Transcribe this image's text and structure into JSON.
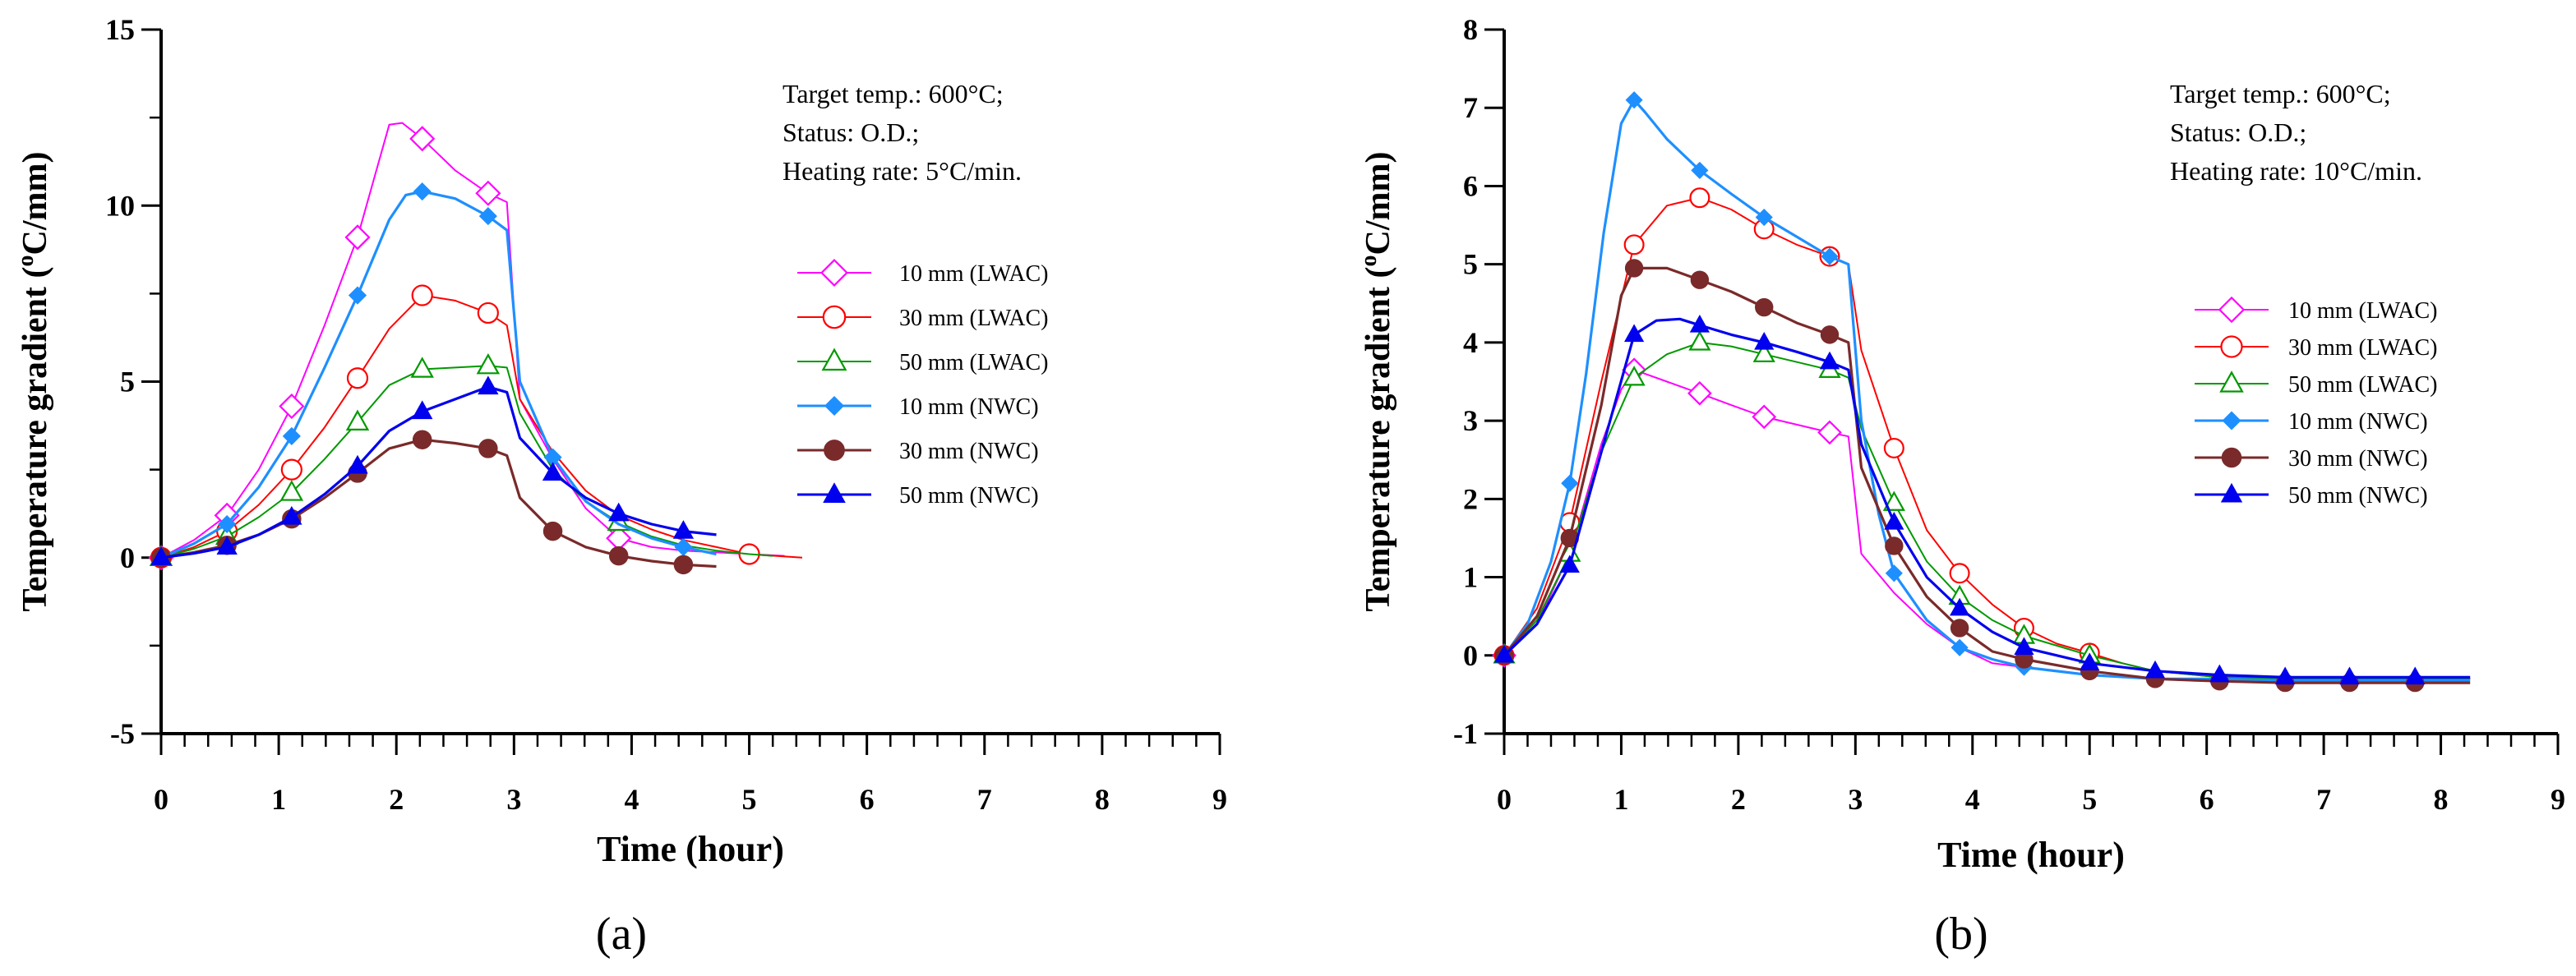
{
  "chart_data": [
    {
      "type": "line",
      "panel_label": "(a)",
      "xlabel": "Time (hour)",
      "ylabel": "Temperature gradient (°C/mm)",
      "ylabel_parts": {
        "pre": "Temperature gradient (",
        "sup": "o",
        "post": "C/mm)"
      },
      "xlim": [
        0,
        9
      ],
      "ylim": [
        -5,
        15
      ],
      "xticks": [
        0,
        1,
        2,
        3,
        4,
        5,
        6,
        7,
        8,
        9
      ],
      "xtick_labels": [
        "0",
        "1",
        "2",
        "3",
        "4",
        "5",
        "6",
        "7",
        "8",
        "9"
      ],
      "yticks": [
        -5,
        0,
        5,
        10,
        15
      ],
      "ytick_labels": [
        "-5",
        "0",
        "5",
        "10",
        "15"
      ],
      "annotation": [
        "Target temp.: 600°C;",
        "Status: O.D.;",
        "Heating rate: 5°C/min."
      ],
      "legend": "right",
      "series": [
        {
          "name": "10 mm (LWAC)",
          "color": "#ff00ff",
          "marker": "diamond-open",
          "x": [
            0,
            0.28,
            0.56,
            0.83,
            1.11,
            1.39,
            1.67,
            1.83,
            1.94,
            2.05,
            2.22,
            2.5,
            2.78,
            2.94,
            3.05,
            3.33,
            3.61,
            3.89,
            4.17,
            4.44,
            4.72,
            5.0,
            5.3
          ],
          "y": [
            0,
            0.5,
            1.2,
            2.5,
            4.3,
            6.6,
            9.1,
            11.0,
            12.3,
            12.35,
            11.9,
            11.0,
            10.35,
            10.1,
            4.5,
            2.8,
            1.4,
            0.55,
            0.3,
            0.2,
            0.15,
            0.1,
            0.05
          ],
          "markers_x": [
            0,
            0.56,
            1.11,
            1.67,
            2.22,
            2.78,
            3.89
          ]
        },
        {
          "name": "30 mm (LWAC)",
          "color": "#ff0000",
          "marker": "circle-open",
          "x": [
            0,
            0.28,
            0.56,
            0.83,
            1.11,
            1.39,
            1.67,
            1.94,
            2.22,
            2.5,
            2.78,
            2.94,
            3.05,
            3.33,
            3.61,
            3.89,
            4.17,
            4.44,
            4.72,
            5.0,
            5.45
          ],
          "y": [
            0,
            0.3,
            0.75,
            1.5,
            2.5,
            3.7,
            5.1,
            6.5,
            7.45,
            7.3,
            6.95,
            6.6,
            4.5,
            3.0,
            1.9,
            1.2,
            0.8,
            0.5,
            0.3,
            0.1,
            0.0
          ],
          "markers_x": [
            0,
            0.56,
            1.11,
            1.67,
            2.22,
            2.78,
            5.0
          ]
        },
        {
          "name": "50 mm (LWAC)",
          "color": "#009900",
          "marker": "triangle-open",
          "x": [
            0,
            0.28,
            0.56,
            0.83,
            1.11,
            1.39,
            1.67,
            1.94,
            2.22,
            2.5,
            2.78,
            2.94,
            3.05,
            3.33,
            3.61,
            3.89,
            4.17,
            4.44,
            4.72,
            5.0,
            5.2
          ],
          "y": [
            0,
            0.25,
            0.6,
            1.15,
            1.85,
            2.8,
            3.85,
            4.9,
            5.35,
            5.4,
            5.45,
            5.4,
            4.1,
            2.5,
            1.6,
            1.0,
            0.6,
            0.35,
            0.2,
            0.1,
            0.05
          ],
          "markers_x": [
            0,
            0.56,
            1.11,
            1.67,
            2.22,
            2.78,
            3.89
          ]
        },
        {
          "name": "10 mm (NWC)",
          "color": "#1e8fff",
          "marker": "diamond-filled",
          "x": [
            0,
            0.28,
            0.56,
            0.83,
            1.11,
            1.39,
            1.67,
            1.94,
            2.08,
            2.22,
            2.5,
            2.78,
            2.94,
            3.05,
            3.33,
            3.61,
            3.89,
            4.17,
            4.44,
            4.72
          ],
          "y": [
            0,
            0.4,
            0.95,
            2.0,
            3.45,
            5.4,
            7.45,
            9.6,
            10.3,
            10.4,
            10.2,
            9.7,
            9.3,
            5.0,
            2.85,
            1.6,
            0.95,
            0.55,
            0.3,
            0.1
          ],
          "markers_x": [
            0,
            0.56,
            1.11,
            1.67,
            2.22,
            2.78,
            3.33,
            4.44
          ]
        },
        {
          "name": "30 mm (NWC)",
          "color": "#7a2a2a",
          "marker": "circle-filled",
          "x": [
            0,
            0.28,
            0.56,
            0.83,
            1.11,
            1.39,
            1.67,
            1.94,
            2.22,
            2.5,
            2.78,
            2.94,
            3.05,
            3.33,
            3.61,
            3.89,
            4.17,
            4.44,
            4.72
          ],
          "y": [
            0,
            0.15,
            0.35,
            0.65,
            1.1,
            1.7,
            2.4,
            3.1,
            3.35,
            3.25,
            3.1,
            2.9,
            1.7,
            0.75,
            0.3,
            0.05,
            -0.1,
            -0.2,
            -0.25
          ],
          "markers_x": [
            0,
            0.56,
            1.11,
            1.67,
            2.22,
            2.78,
            3.33,
            3.89,
            4.44
          ]
        },
        {
          "name": "50 mm (NWC)",
          "color": "#0000ee",
          "marker": "triangle-filled",
          "x": [
            0,
            0.28,
            0.56,
            0.83,
            1.11,
            1.39,
            1.67,
            1.94,
            2.22,
            2.5,
            2.78,
            2.94,
            3.05,
            3.33,
            3.61,
            3.89,
            4.17,
            4.44,
            4.72
          ],
          "y": [
            0,
            0.12,
            0.3,
            0.65,
            1.15,
            1.8,
            2.6,
            3.6,
            4.15,
            4.5,
            4.85,
            4.7,
            3.4,
            2.4,
            1.7,
            1.25,
            0.95,
            0.75,
            0.65
          ],
          "markers_x": [
            0,
            0.56,
            1.11,
            1.67,
            2.22,
            2.78,
            3.33,
            3.89,
            4.44
          ]
        }
      ]
    },
    {
      "type": "line",
      "panel_label": "(b)",
      "xlabel": "Time (hour)",
      "ylabel": "Temperature gradient (°C/mm)",
      "ylabel_parts": {
        "pre": "Temperature gradient (",
        "sup": "o",
        "post": "C/mm)"
      },
      "xlim": [
        0,
        9
      ],
      "ylim": [
        -1,
        8
      ],
      "xticks": [
        0,
        1,
        2,
        3,
        4,
        5,
        6,
        7,
        8,
        9
      ],
      "xtick_labels": [
        "0",
        "1",
        "2",
        "3",
        "4",
        "5",
        "6",
        "7",
        "8",
        "9"
      ],
      "yticks": [
        -1,
        0,
        1,
        2,
        3,
        4,
        5,
        6,
        7,
        8
      ],
      "ytick_labels": [
        "-1",
        "0",
        "1",
        "2",
        "3",
        "4",
        "5",
        "6",
        "7",
        "8"
      ],
      "annotation": [
        "Target temp.: 600°C;",
        "Status: O.D.;",
        "Heating rate: 10°C/min."
      ],
      "legend": "right",
      "series": [
        {
          "name": "10 mm (LWAC)",
          "color": "#ff00ff",
          "marker": "diamond-open",
          "x": [
            0,
            0.28,
            0.56,
            0.83,
            1.0,
            1.11,
            1.39,
            1.67,
            1.94,
            2.22,
            2.5,
            2.78,
            2.94,
            3.05,
            3.33,
            3.61,
            3.89,
            4.17,
            4.44,
            5.0,
            5.56,
            6.11,
            6.67,
            7.22,
            7.78,
            8.25
          ],
          "y": [
            0,
            0.4,
            1.3,
            2.7,
            3.4,
            3.65,
            3.5,
            3.35,
            3.2,
            3.05,
            2.95,
            2.85,
            2.8,
            1.3,
            0.8,
            0.4,
            0.1,
            -0.1,
            -0.15,
            -0.25,
            -0.3,
            -0.3,
            -0.3,
            -0.3,
            -0.3,
            -0.3
          ],
          "markers_x": [
            0,
            1.11,
            1.67,
            2.22,
            2.78
          ]
        },
        {
          "name": "30 mm (LWAC)",
          "color": "#ff0000",
          "marker": "circle-open",
          "x": [
            0,
            0.28,
            0.56,
            0.83,
            1.11,
            1.39,
            1.67,
            1.94,
            2.22,
            2.5,
            2.78,
            2.94,
            3.05,
            3.33,
            3.61,
            3.89,
            4.17,
            4.44,
            4.72,
            5.0,
            5.28,
            5.56,
            6.11,
            6.67,
            7.22,
            7.78,
            8.25
          ],
          "y": [
            0,
            0.6,
            1.7,
            3.5,
            5.25,
            5.75,
            5.85,
            5.7,
            5.45,
            5.25,
            5.1,
            5.0,
            3.9,
            2.65,
            1.6,
            1.05,
            0.65,
            0.35,
            0.15,
            0.03,
            -0.1,
            -0.2,
            -0.28,
            -0.3,
            -0.3,
            -0.3,
            -0.3
          ],
          "markers_x": [
            0,
            0.56,
            1.11,
            1.67,
            2.22,
            2.78,
            3.33,
            3.89,
            4.44,
            5.0
          ]
        },
        {
          "name": "50 mm (LWAC)",
          "color": "#009900",
          "marker": "triangle-open",
          "x": [
            0,
            0.28,
            0.56,
            0.83,
            1.11,
            1.39,
            1.67,
            1.94,
            2.22,
            2.5,
            2.78,
            2.94,
            3.05,
            3.33,
            3.61,
            3.89,
            4.17,
            4.44,
            5.0,
            5.56,
            6.11,
            6.67,
            7.22,
            7.78,
            8.25
          ],
          "y": [
            0,
            0.45,
            1.3,
            2.6,
            3.55,
            3.85,
            4.0,
            3.95,
            3.85,
            3.75,
            3.65,
            3.55,
            2.9,
            1.95,
            1.2,
            0.75,
            0.45,
            0.25,
            0.0,
            -0.2,
            -0.28,
            -0.3,
            -0.3,
            -0.3,
            -0.3
          ],
          "markers_x": [
            0,
            0.56,
            1.11,
            1.67,
            2.22,
            2.78,
            3.33,
            3.89,
            4.44,
            5.0
          ]
        },
        {
          "name": "10 mm (NWC)",
          "color": "#1e8fff",
          "marker": "diamond-filled",
          "x": [
            0,
            0.2,
            0.4,
            0.56,
            0.7,
            0.85,
            1.0,
            1.11,
            1.2,
            1.39,
            1.67,
            1.94,
            2.22,
            2.5,
            2.78,
            2.94,
            3.05,
            3.2,
            3.33,
            3.61,
            3.89,
            4.17,
            4.44,
            5.0,
            5.56,
            6.11,
            6.67,
            7.22,
            7.78,
            8.25
          ],
          "y": [
            0,
            0.4,
            1.2,
            2.2,
            3.6,
            5.4,
            6.8,
            7.1,
            6.95,
            6.6,
            6.2,
            5.9,
            5.6,
            5.35,
            5.1,
            5.0,
            3.0,
            1.8,
            1.05,
            0.45,
            0.1,
            -0.05,
            -0.15,
            -0.25,
            -0.3,
            -0.3,
            -0.32,
            -0.32,
            -0.32,
            -0.32
          ],
          "markers_x": [
            0,
            0.56,
            1.11,
            1.67,
            2.22,
            2.78,
            3.33,
            3.89,
            4.44
          ]
        },
        {
          "name": "30 mm (NWC)",
          "color": "#7a2a2a",
          "marker": "circle-filled",
          "x": [
            0,
            0.28,
            0.56,
            0.83,
            1.0,
            1.11,
            1.39,
            1.67,
            1.94,
            2.22,
            2.5,
            2.78,
            2.94,
            3.05,
            3.33,
            3.61,
            3.89,
            4.17,
            4.44,
            5.0,
            5.56,
            6.11,
            6.67,
            7.22,
            7.78,
            8.25
          ],
          "y": [
            0,
            0.5,
            1.5,
            3.2,
            4.6,
            4.95,
            4.95,
            4.8,
            4.65,
            4.45,
            4.25,
            4.1,
            4.0,
            2.4,
            1.4,
            0.75,
            0.35,
            0.05,
            -0.05,
            -0.2,
            -0.3,
            -0.33,
            -0.35,
            -0.35,
            -0.35,
            -0.35
          ],
          "markers_x": [
            0,
            0.56,
            1.11,
            1.67,
            2.22,
            2.78,
            3.33,
            3.89,
            4.44,
            5.0,
            5.56,
            6.11,
            6.67,
            7.22,
            7.78
          ]
        },
        {
          "name": "50 mm (NWC)",
          "color": "#0000ee",
          "marker": "triangle-filled",
          "x": [
            0,
            0.28,
            0.56,
            0.83,
            1.11,
            1.3,
            1.5,
            1.67,
            1.94,
            2.22,
            2.5,
            2.78,
            2.94,
            3.05,
            3.33,
            3.61,
            3.89,
            4.17,
            4.44,
            5.0,
            5.56,
            6.11,
            6.67,
            7.22,
            7.78,
            8.25
          ],
          "y": [
            0,
            0.4,
            1.15,
            2.6,
            4.1,
            4.28,
            4.3,
            4.22,
            4.1,
            4.0,
            3.88,
            3.75,
            3.65,
            2.7,
            1.7,
            1.0,
            0.6,
            0.3,
            0.1,
            -0.1,
            -0.2,
            -0.25,
            -0.28,
            -0.28,
            -0.28,
            -0.28
          ],
          "markers_x": [
            0,
            0.56,
            1.11,
            1.67,
            2.22,
            2.78,
            3.33,
            3.89,
            4.44,
            5.0,
            5.56,
            6.11,
            6.67,
            7.22,
            7.78
          ]
        }
      ]
    }
  ]
}
